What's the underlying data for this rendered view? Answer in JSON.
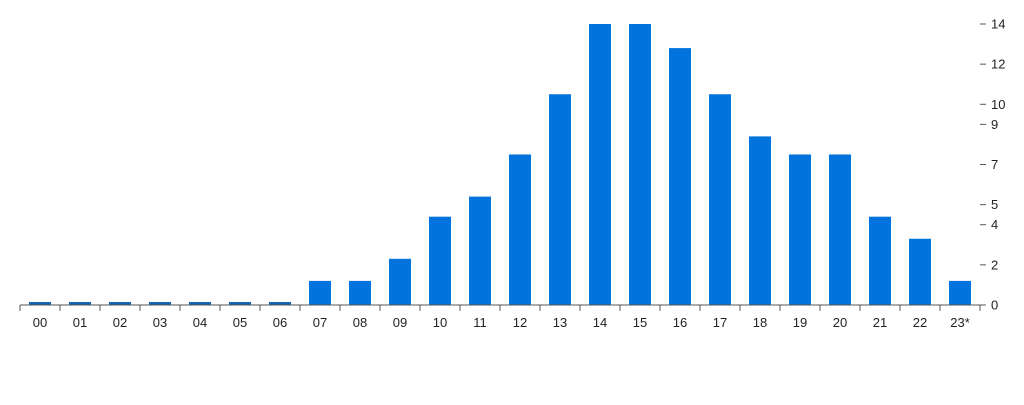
{
  "colors": {
    "bar": "#0073dc",
    "empty_bar": "#1565b0",
    "axis": "#555555",
    "text": "#222222"
  },
  "chart_data": {
    "type": "bar",
    "categories": [
      "00",
      "01",
      "02",
      "03",
      "04",
      "05",
      "06",
      "07",
      "08",
      "09",
      "10",
      "11",
      "12",
      "13",
      "14",
      "15",
      "16",
      "17",
      "18",
      "19",
      "20",
      "21",
      "22",
      "23*"
    ],
    "values": [
      0,
      0,
      0,
      0,
      0,
      0,
      0,
      1.2,
      1.2,
      2.3,
      4.4,
      5.4,
      7.5,
      10.5,
      14,
      14,
      12.8,
      10.5,
      8.4,
      7.5,
      7.5,
      4.4,
      3.3,
      1.2
    ],
    "y_ticks": [
      {
        "value": 0,
        "label": "0"
      },
      {
        "value": 2,
        "label": "2"
      },
      {
        "value": 4,
        "label": "4"
      },
      {
        "value": 5,
        "label": "5"
      },
      {
        "value": 7,
        "label": "7"
      },
      {
        "value": 9,
        "label": "9"
      },
      {
        "value": 10,
        "label": "10"
      },
      {
        "value": 12,
        "label": "12"
      },
      {
        "value": 14,
        "label": "14"
      }
    ],
    "ylim": [
      0,
      14
    ],
    "y_axis_side": "right",
    "grid": false,
    "legend": "none"
  }
}
